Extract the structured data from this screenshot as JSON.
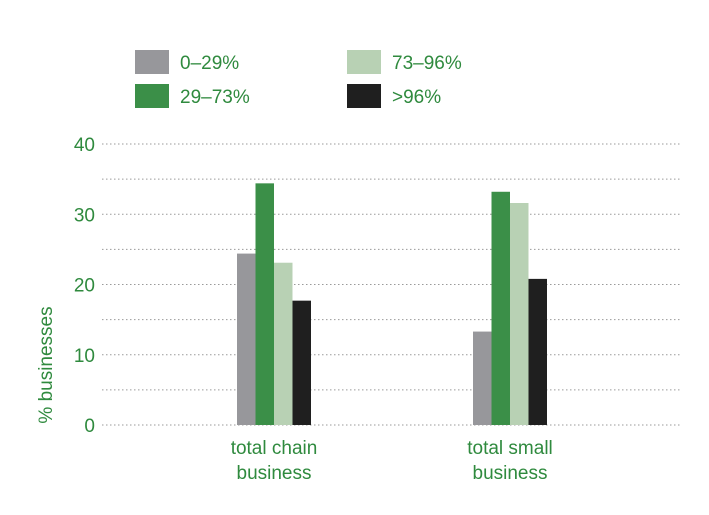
{
  "chart_data": {
    "type": "bar",
    "title": "",
    "xlabel": "",
    "ylabel": "% businesses",
    "ylim": [
      0,
      40
    ],
    "yticks": [
      0,
      10,
      20,
      30,
      40
    ],
    "grid": true,
    "legend_position": "top",
    "categories": [
      [
        "total chain",
        "business"
      ],
      [
        "total small",
        "business"
      ]
    ],
    "series": [
      {
        "name": "0–29%",
        "color": "#97979b",
        "values": [
          24.4,
          13.3
        ]
      },
      {
        "name": "29–73%",
        "color": "#3b8f48",
        "values": [
          34.4,
          33.2
        ]
      },
      {
        "name": "73–96%",
        "color": "#b8d1b4",
        "values": [
          23.1,
          31.6
        ]
      },
      {
        "name": ">96%",
        "color": "#1f1f1f",
        "values": [
          17.7,
          20.8
        ]
      }
    ]
  },
  "colors": {
    "text_accent": "#2f8a3e",
    "grid": "#9a9a9a"
  }
}
